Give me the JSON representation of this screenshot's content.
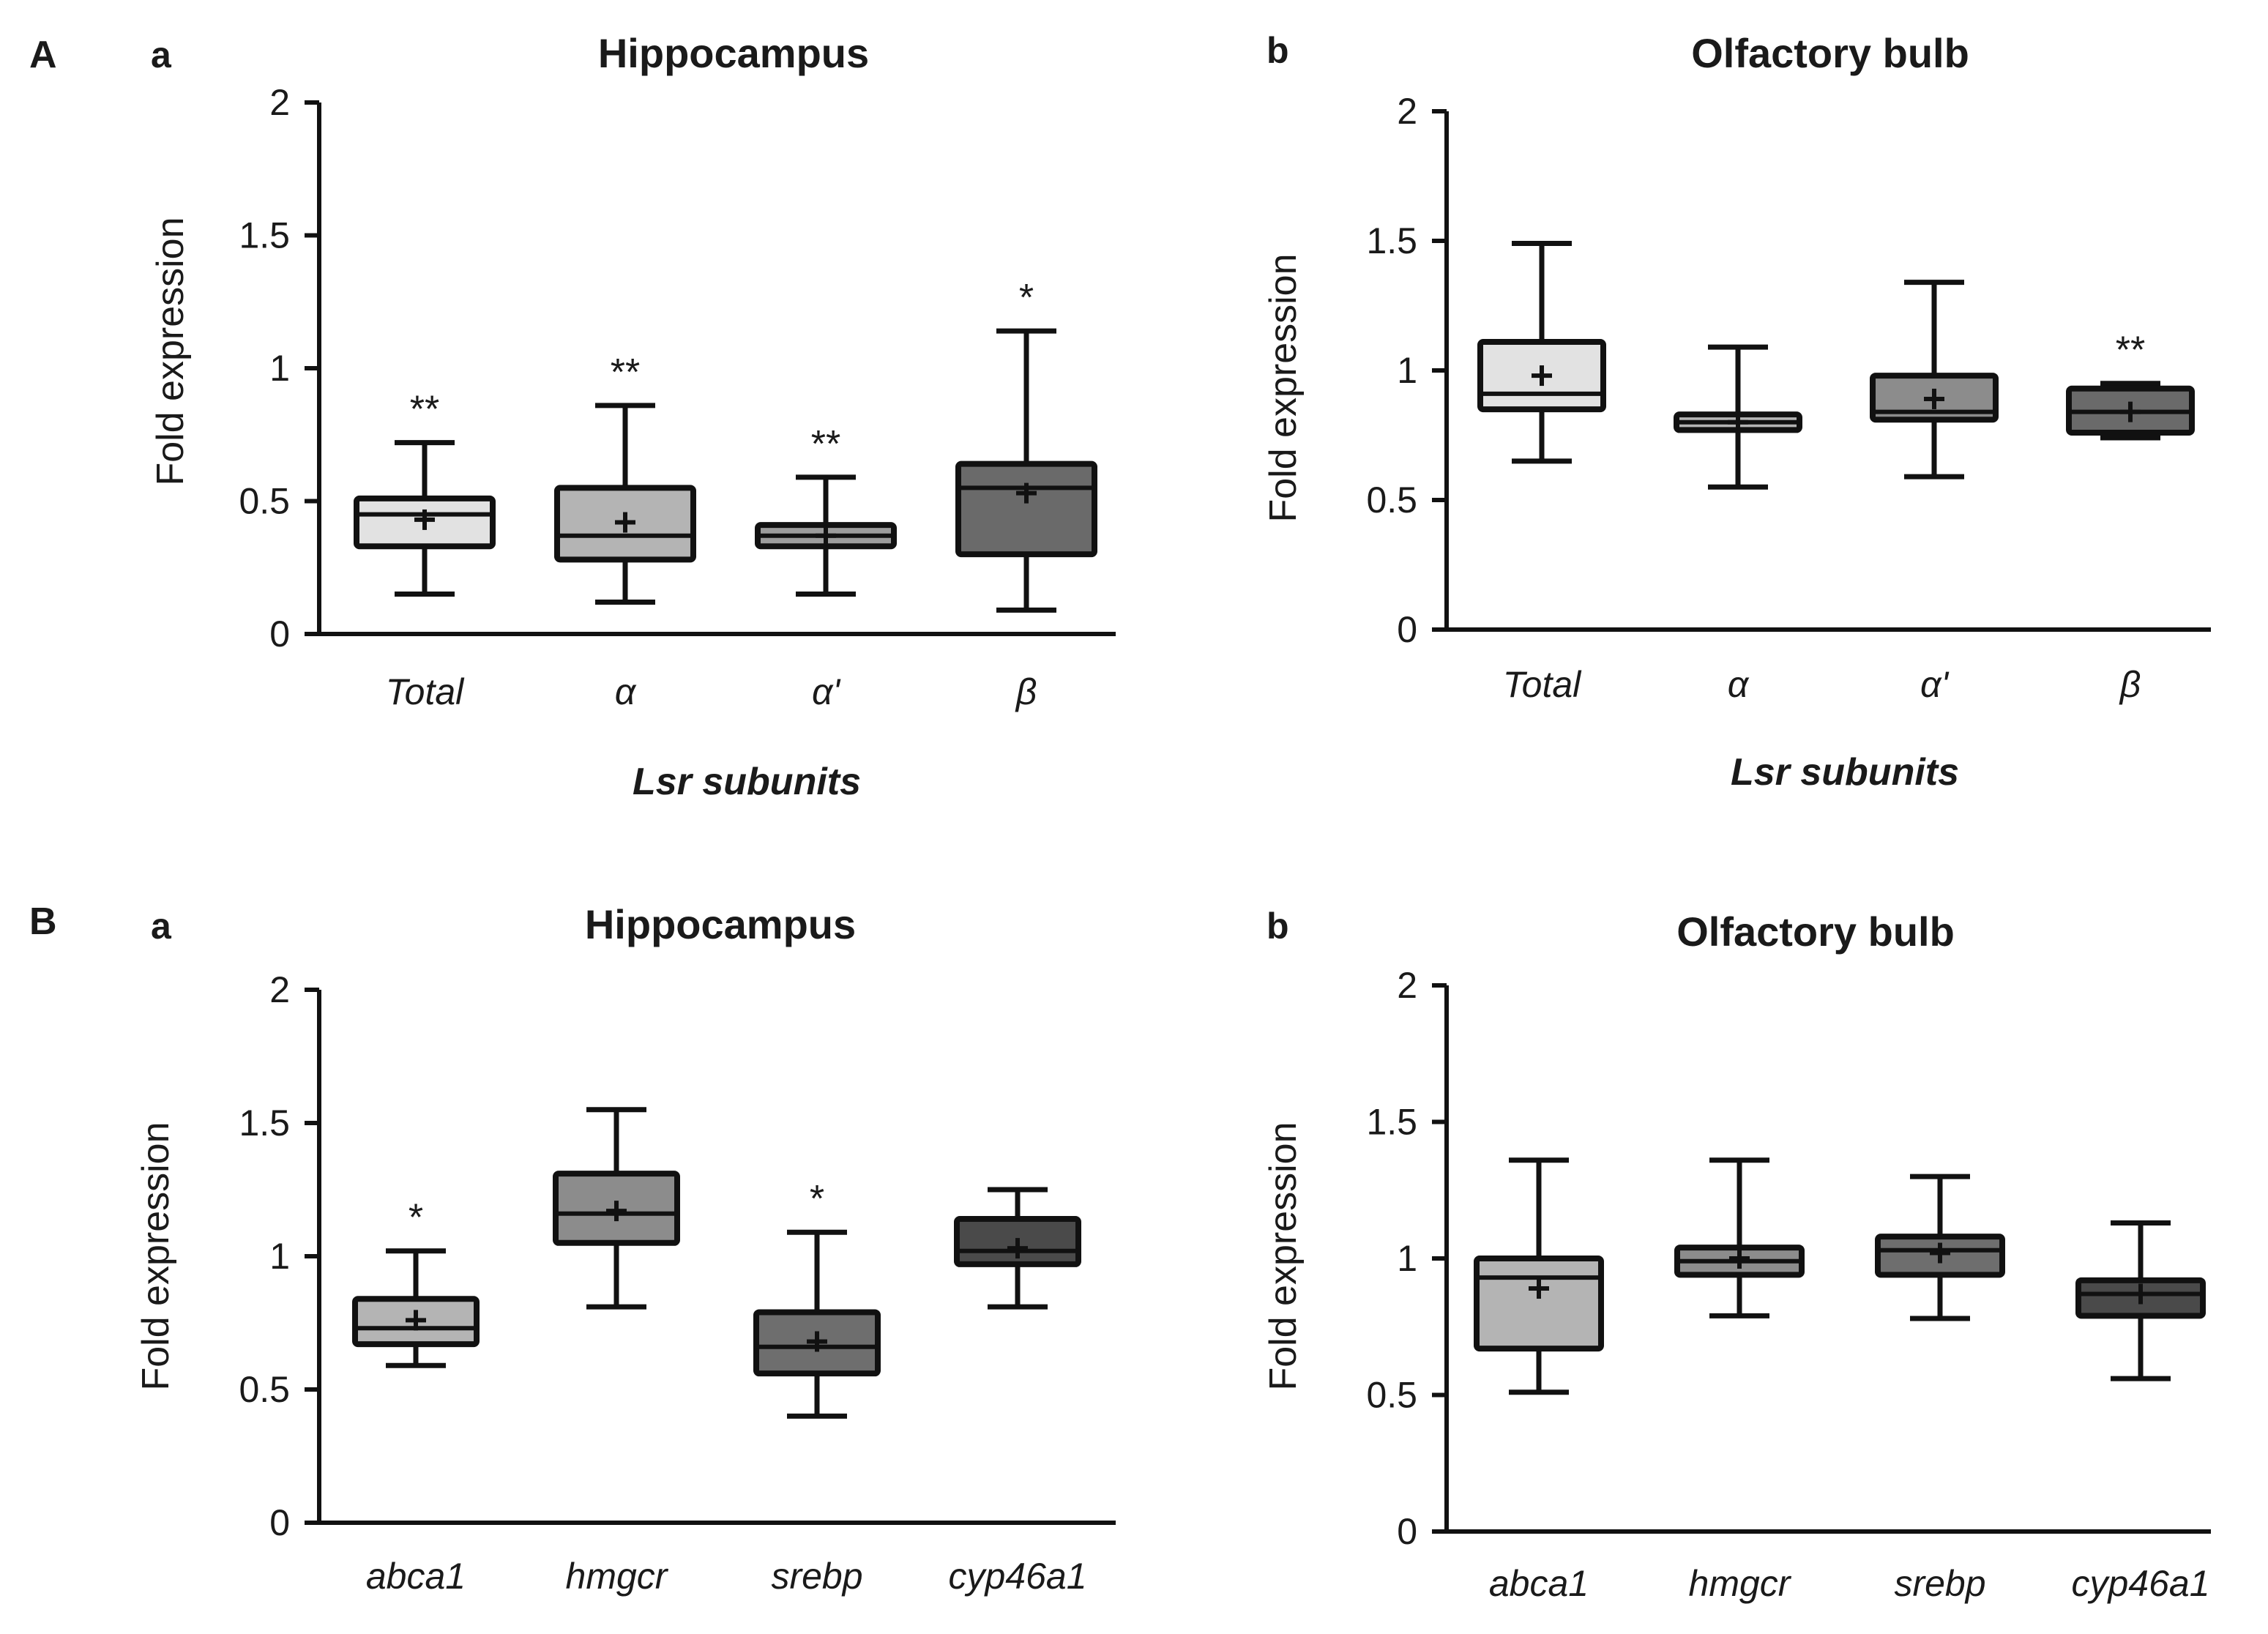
{
  "panels": [
    {
      "letter": "A"
    },
    {
      "letter": "B"
    }
  ],
  "chart_data": [
    {
      "type": "box",
      "panel": "A",
      "subpanel": "a",
      "title": "Hippocampus",
      "xlabel": "Lsr subunits",
      "ylabel": "Fold expression",
      "ylim": [
        0,
        2
      ],
      "yticks": [
        "0",
        "0.5",
        "1",
        "1.5",
        "2"
      ],
      "categories": [
        "Total",
        "α",
        "α'",
        "β"
      ],
      "boxes": [
        {
          "min": 0.15,
          "q1": 0.33,
          "median": 0.45,
          "q3": 0.51,
          "max": 0.72,
          "mean": 0.43,
          "fill": "#e2e2e2",
          "significance": "**"
        },
        {
          "min": 0.12,
          "q1": 0.28,
          "median": 0.37,
          "q3": 0.55,
          "max": 0.86,
          "mean": 0.42,
          "fill": "#b4b4b4",
          "significance": "**"
        },
        {
          "min": 0.15,
          "q1": 0.33,
          "median": 0.37,
          "q3": 0.41,
          "max": 0.59,
          "mean": 0.37,
          "fill": "#9c9c9c",
          "significance": "**"
        },
        {
          "min": 0.09,
          "q1": 0.3,
          "median": 0.55,
          "q3": 0.64,
          "max": 1.14,
          "mean": 0.53,
          "fill": "#6a6a6a",
          "significance": "*"
        }
      ]
    },
    {
      "type": "box",
      "panel": "A",
      "subpanel": "b",
      "title": "Olfactory bulb",
      "xlabel": "Lsr subunits",
      "ylabel": "Fold expression",
      "ylim": [
        0,
        2
      ],
      "yticks": [
        "0",
        "0.5",
        "1",
        "1.5",
        "2"
      ],
      "categories": [
        "Total",
        "α",
        "α'",
        "β"
      ],
      "boxes": [
        {
          "min": 0.65,
          "q1": 0.85,
          "median": 0.91,
          "q3": 1.11,
          "max": 1.49,
          "mean": 0.98,
          "fill": "#e2e2e2",
          "significance": ""
        },
        {
          "min": 0.55,
          "q1": 0.77,
          "median": 0.8,
          "q3": 0.83,
          "max": 1.09,
          "mean": 0.8,
          "fill": "#b4b4b4",
          "significance": ""
        },
        {
          "min": 0.59,
          "q1": 0.81,
          "median": 0.84,
          "q3": 0.98,
          "max": 1.34,
          "mean": 0.89,
          "fill": "#8c8c8c",
          "significance": ""
        },
        {
          "min": 0.74,
          "q1": 0.76,
          "median": 0.84,
          "q3": 0.93,
          "max": 0.95,
          "mean": 0.84,
          "fill": "#6a6a6a",
          "significance": "**"
        }
      ]
    },
    {
      "type": "box",
      "panel": "B",
      "subpanel": "a",
      "title": "Hippocampus",
      "xlabel": "",
      "ylabel": "Fold expression",
      "ylim": [
        0,
        2
      ],
      "yticks": [
        "0",
        "0.5",
        "1",
        "1.5",
        "2"
      ],
      "categories": [
        "abca1",
        "hmgcr",
        "srebp",
        "cyp46a1"
      ],
      "boxes": [
        {
          "min": 0.59,
          "q1": 0.67,
          "median": 0.73,
          "q3": 0.84,
          "max": 1.02,
          "mean": 0.76,
          "fill": "#b4b4b4",
          "significance": "*"
        },
        {
          "min": 0.81,
          "q1": 1.05,
          "median": 1.16,
          "q3": 1.31,
          "max": 1.55,
          "mean": 1.17,
          "fill": "#8c8c8c",
          "significance": ""
        },
        {
          "min": 0.4,
          "q1": 0.56,
          "median": 0.66,
          "q3": 0.79,
          "max": 1.09,
          "mean": 0.68,
          "fill": "#6e6e6e",
          "significance": "*"
        },
        {
          "min": 0.81,
          "q1": 0.97,
          "median": 1.02,
          "q3": 1.14,
          "max": 1.25,
          "mean": 1.03,
          "fill": "#4a4a4a",
          "significance": ""
        }
      ]
    },
    {
      "type": "box",
      "panel": "B",
      "subpanel": "b",
      "title": "Olfactory bulb",
      "xlabel": "",
      "ylabel": "Fold expression",
      "ylim": [
        0,
        2
      ],
      "yticks": [
        "0",
        "0.5",
        "1",
        "1.5",
        "2"
      ],
      "categories": [
        "abca1",
        "hmgcr",
        "srebp",
        "cyp46a1"
      ],
      "boxes": [
        {
          "min": 0.51,
          "q1": 0.67,
          "median": 0.93,
          "q3": 1.0,
          "max": 1.36,
          "mean": 0.89,
          "fill": "#b4b4b4",
          "significance": ""
        },
        {
          "min": 0.79,
          "q1": 0.94,
          "median": 0.99,
          "q3": 1.04,
          "max": 1.36,
          "mean": 1.0,
          "fill": "#8c8c8c",
          "significance": ""
        },
        {
          "min": 0.78,
          "q1": 0.94,
          "median": 1.03,
          "q3": 1.08,
          "max": 1.3,
          "mean": 1.02,
          "fill": "#6e6e6e",
          "significance": ""
        },
        {
          "min": 0.56,
          "q1": 0.79,
          "median": 0.87,
          "q3": 0.92,
          "max": 1.13,
          "mean": 0.87,
          "fill": "#4a4a4a",
          "significance": ""
        }
      ]
    }
  ]
}
